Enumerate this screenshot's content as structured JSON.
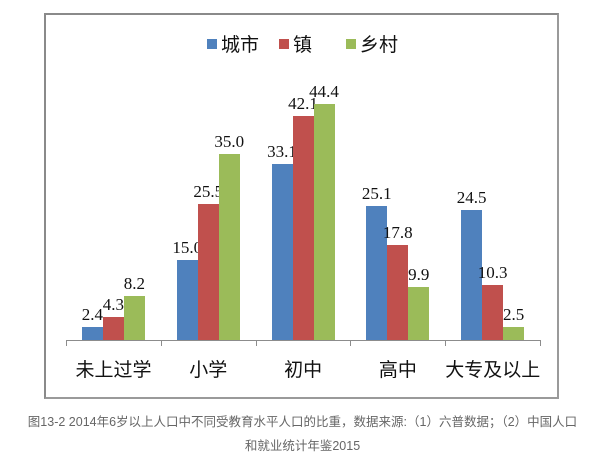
{
  "chart_data": {
    "type": "bar",
    "title": "",
    "xlabel": "",
    "ylabel": "",
    "ylim": [
      0,
      44.4
    ],
    "grid": false,
    "legend_position": "top",
    "categories": [
      "未上过学",
      "小学",
      "初中",
      "高中",
      "大专及以上"
    ],
    "series": [
      {
        "name": "城市",
        "color": "#4F81BD",
        "values": [
          2.4,
          15.0,
          33.1,
          25.1,
          24.5
        ],
        "labels": [
          "2.4",
          "15.0",
          "33.1",
          "25.1",
          "24.5"
        ]
      },
      {
        "name": "镇",
        "color": "#C0504D",
        "values": [
          4.3,
          25.5,
          42.1,
          17.8,
          10.3
        ],
        "labels": [
          "4.3",
          "25.5",
          "42.1",
          "17.8",
          "10.3"
        ]
      },
      {
        "name": "乡村",
        "color": "#9BBB59",
        "values": [
          8.2,
          35.0,
          44.4,
          9.9,
          2.5
        ],
        "labels": [
          "8.2",
          "35.0",
          "44.4",
          "9.9",
          "2.5"
        ]
      }
    ]
  },
  "caption": {
    "line1": "图13-2 2014年6岁以上人口中不同受教育水平人口的比重，数据来源:（1）六普数据；（2）中国人口",
    "line2": "和就业统计年鉴2015"
  }
}
